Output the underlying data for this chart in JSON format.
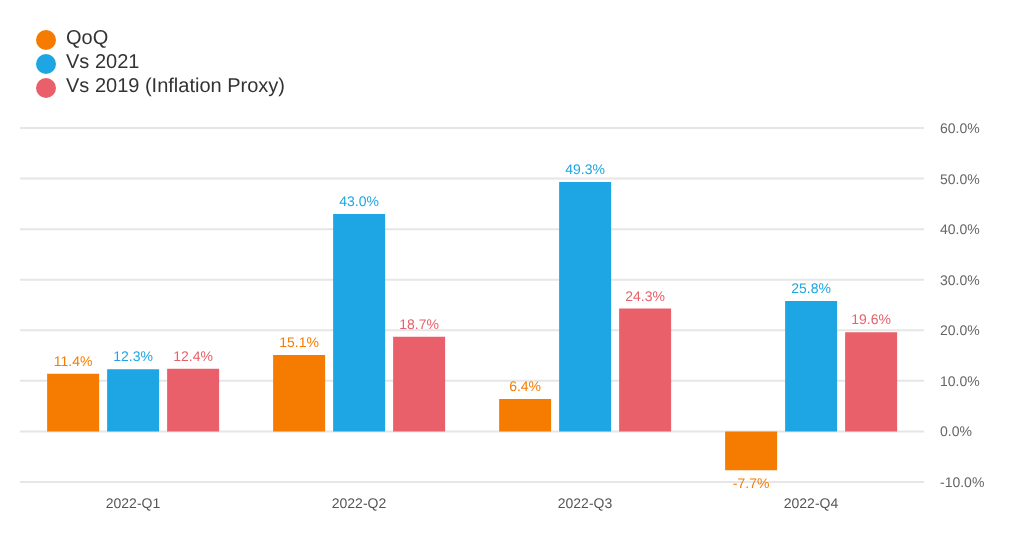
{
  "chart_data": {
    "type": "bar",
    "categories": [
      "2022-Q1",
      "2022-Q2",
      "2022-Q3",
      "2022-Q4"
    ],
    "series": [
      {
        "name": "QoQ",
        "color": "#f57c00",
        "values": [
          11.4,
          15.1,
          6.4,
          -7.7
        ],
        "value_labels": [
          "11.4%",
          "15.1%",
          "6.4%",
          "-7.7%"
        ]
      },
      {
        "name": "Vs 2021",
        "color": "#1ea5e3",
        "values": [
          12.3,
          43.0,
          49.3,
          25.8
        ],
        "value_labels": [
          "12.3%",
          "43.0%",
          "49.3%",
          "25.8%"
        ]
      },
      {
        "name": "Vs 2019 (Inflation Proxy)",
        "color": "#e9606b",
        "values": [
          12.4,
          18.7,
          24.3,
          19.6
        ],
        "value_labels": [
          "12.4%",
          "18.7%",
          "24.3%",
          "19.6%"
        ]
      }
    ],
    "ylim": [
      -10,
      60
    ],
    "yticks": [
      {
        "value": -10,
        "label": "-10.0%"
      },
      {
        "value": 0,
        "label": "0.0%"
      },
      {
        "value": 10,
        "label": "10.0%"
      },
      {
        "value": 20,
        "label": "20.0%"
      },
      {
        "value": 30,
        "label": "30.0%"
      },
      {
        "value": 40,
        "label": "40.0%"
      },
      {
        "value": 50,
        "label": "50.0%"
      },
      {
        "value": 60,
        "label": "60.0%"
      }
    ],
    "grid": "y",
    "legend": "top left"
  }
}
